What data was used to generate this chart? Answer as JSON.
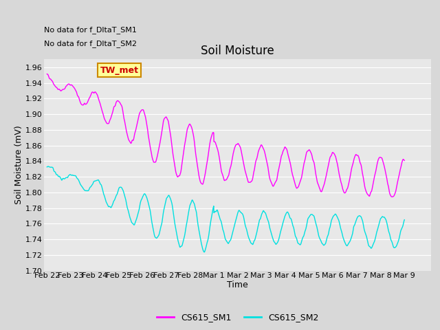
{
  "title": "Soil Moisture",
  "xlabel": "Time",
  "ylabel": "Soil Moisture (mV)",
  "ylim": [
    1.7,
    1.97
  ],
  "fig_bg_color": "#d8d8d8",
  "plot_bg_color": "#e8e8e8",
  "grid_color": "#ffffff",
  "line1_color": "#ff00ff",
  "line2_color": "#00e0e0",
  "legend_labels": [
    "CS615_SM1",
    "CS615_SM2"
  ],
  "no_data_text": [
    "No data for f_DltaT_SM1",
    "No data for f_DltaT_SM2"
  ],
  "tw_met_label": "TW_met",
  "tw_met_bg": "#ffff99",
  "tw_met_border": "#cc8800",
  "xtick_labels": [
    "Feb 22",
    "Feb 23",
    "Feb 24",
    "Feb 25",
    "Feb 26",
    "Feb 27",
    "Feb 28",
    "Mar 1",
    "Mar 2",
    "Mar 3",
    "Mar 4",
    "Mar 5",
    "Mar 6",
    "Mar 7",
    "Mar 8",
    "Mar 9"
  ],
  "title_fontsize": 12,
  "axis_label_fontsize": 9,
  "tick_fontsize": 8,
  "legend_fontsize": 9,
  "nodata_fontsize": 8
}
